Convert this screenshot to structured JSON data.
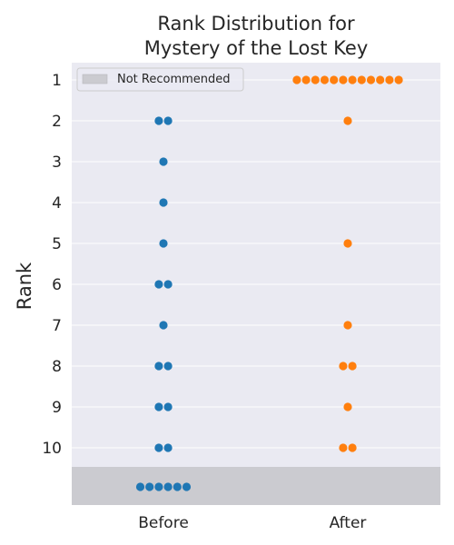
{
  "chart_data": {
    "type": "scatter",
    "title_lines": [
      "Rank Distribution for",
      "Mystery of the Lost Key"
    ],
    "ylabel": "Rank",
    "xlabel": "",
    "categories": [
      "Before",
      "After"
    ],
    "rank_ticks": [
      "1",
      "2",
      "3",
      "4",
      "5",
      "6",
      "7",
      "8",
      "9",
      "10"
    ],
    "not_recommended_label": "Not Recommended",
    "grid": true,
    "legend_position": "top-left",
    "series": [
      {
        "category": "Before",
        "color": "#1f77b4",
        "counts": {
          "1": 0,
          "2": 2,
          "3": 1,
          "4": 1,
          "5": 1,
          "6": 2,
          "7": 1,
          "8": 2,
          "9": 2,
          "10": 2
        },
        "not_recommended": 6
      },
      {
        "category": "After",
        "color": "#ff7f0e",
        "counts": {
          "1": 12,
          "2": 1,
          "3": 0,
          "4": 0,
          "5": 1,
          "6": 0,
          "7": 1,
          "8": 2,
          "9": 1,
          "10": 2
        },
        "not_recommended": 0
      }
    ],
    "colors": {
      "plot_background": "#eaeaf2",
      "grid": "#ffffff",
      "not_recommended_band": "#cbcbd0"
    }
  }
}
